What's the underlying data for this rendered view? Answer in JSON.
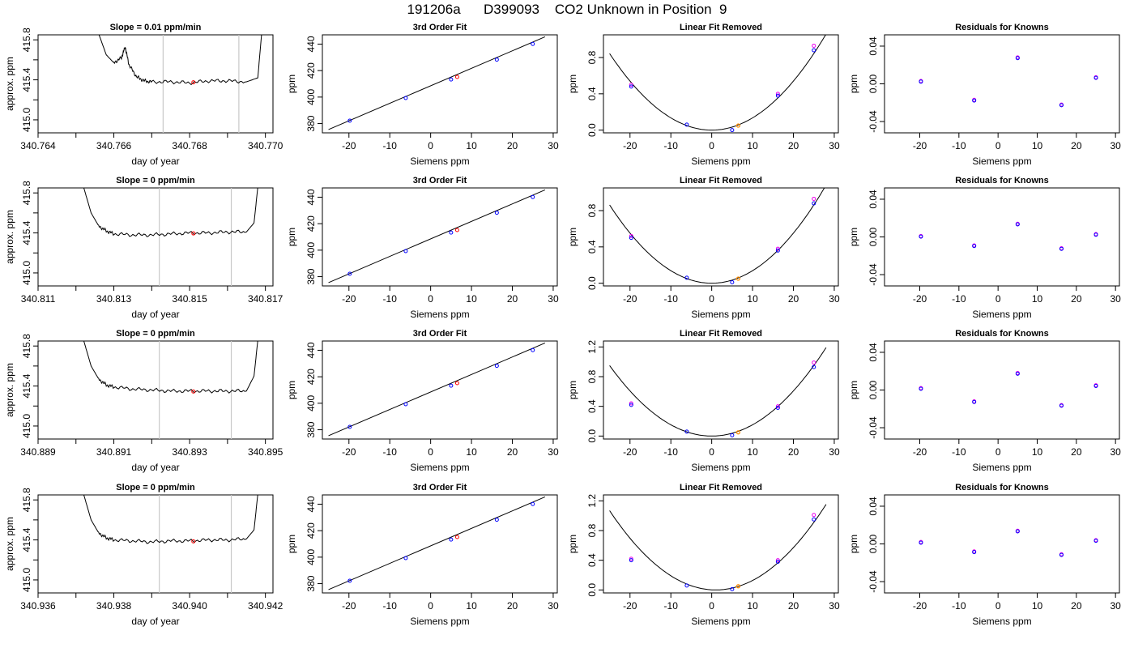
{
  "page_title": "191206a      D399093    CO2 Unknown in Position  9",
  "colors": {
    "known_point": "#0000ff",
    "known_point_alt": "#ee00ee",
    "unknown_point": "#ff0000",
    "unknown_point_removed": "#ff8c00",
    "fit_line": "#000000",
    "window_marker": "#c8c8c8"
  },
  "chart_data": [
    {
      "panel": "trace",
      "row": 1,
      "type": "line",
      "title": "Slope =  0.01  ppm/min",
      "xlabel": "day of year",
      "ylabel": "approx. ppm",
      "xlim": [
        340.764,
        340.7702
      ],
      "ylim": [
        414.87,
        415.85
      ],
      "xticks": [
        "340.764",
        "",
        "340.766",
        "",
        "340.768",
        "",
        "340.770"
      ],
      "xtick_values": [
        340.764,
        340.765,
        340.766,
        340.767,
        340.768,
        340.769,
        340.77
      ],
      "yticks": [
        "415.0",
        "415.4",
        "415.8"
      ],
      "ytick_values": [
        415.0,
        415.4,
        415.8
      ],
      "yminor": [
        415.2,
        415.6
      ],
      "vlines": [
        340.7673,
        340.7693
      ],
      "point": {
        "x": 340.7681,
        "y": 415.375
      },
      "x": [
        340.7656,
        340.7658,
        340.766,
        340.7662,
        340.7663,
        340.7664,
        340.7666,
        340.7668,
        340.767,
        340.7675,
        340.768,
        340.7685,
        340.769,
        340.7695,
        340.7698,
        340.7699
      ],
      "y": [
        415.86,
        415.65,
        415.57,
        415.62,
        415.73,
        415.55,
        415.43,
        415.39,
        415.38,
        415.38,
        415.37,
        415.39,
        415.39,
        415.38,
        415.42,
        415.86
      ]
    },
    {
      "panel": "fit",
      "row": 1,
      "type": "scatter",
      "title": "3rd Order Fit",
      "xlabel": "Siemens ppm",
      "ylabel": "ppm",
      "xlim": [
        -26.5,
        31
      ],
      "ylim": [
        373,
        447
      ],
      "xticks": [
        "-20",
        "-10",
        "0",
        "10",
        "20",
        "30"
      ],
      "xtick_values": [
        -20,
        -10,
        0,
        10,
        20,
        30
      ],
      "yticks": [
        "380",
        "400",
        "420",
        "440"
      ],
      "ytick_values": [
        380,
        400,
        420,
        440
      ],
      "fit_line": {
        "x": [
          -25,
          28
        ],
        "y": [
          375.5,
          445.5
        ]
      },
      "knowns": {
        "x": [
          -19.8,
          -6.1,
          5.0,
          16.2,
          25.0
        ],
        "y": [
          382.2,
          399.3,
          413.3,
          428.3,
          440.1
        ]
      },
      "unknown": {
        "x": 6.5,
        "y": 415.2
      }
    },
    {
      "panel": "linear_removed",
      "row": 1,
      "type": "scatter",
      "title": "Linear Fit Removed",
      "xlabel": "Siemens ppm",
      "ylabel": "ppm",
      "xlim": [
        -26.5,
        31
      ],
      "ylim": [
        -0.03,
        1.05
      ],
      "xticks": [
        "-20",
        "-10",
        "0",
        "10",
        "20",
        "30"
      ],
      "xtick_values": [
        -20,
        -10,
        0,
        10,
        20,
        30
      ],
      "yticks": [
        "0.0",
        "0.4",
        "0.8"
      ],
      "ytick_values": [
        0.0,
        0.4,
        0.8
      ],
      "curve": {
        "a": 0.00135,
        "x0": 0,
        "c": 0,
        "xmin": -25,
        "xmax": 28
      },
      "knowns": {
        "x": [
          -19.7,
          -6.1,
          5.0,
          16.2,
          25.0
        ],
        "y": [
          0.48,
          0.06,
          0.0,
          0.38,
          0.88
        ]
      },
      "knowns_alt": {
        "x": [
          -19.7,
          16.2,
          25.0
        ],
        "y": [
          0.5,
          0.4,
          0.93
        ]
      },
      "unknown": {
        "x": 6.5,
        "y": 0.05
      }
    },
    {
      "panel": "residuals",
      "row": 1,
      "type": "scatter",
      "title": "Residuals for Knowns",
      "xlabel": "Siemens ppm",
      "ylabel": "ppm",
      "xlim": [
        -29,
        31
      ],
      "ylim": [
        -0.052,
        0.052
      ],
      "xticks": [
        "-20",
        "-10",
        "0",
        "10",
        "20",
        "30"
      ],
      "xtick_values": [
        -20,
        -10,
        0,
        10,
        20,
        30
      ],
      "yticks": [
        "-0.04",
        "0.00",
        "0.04"
      ],
      "ytick_values": [
        -0.04,
        0.0,
        0.04
      ],
      "knowns": {
        "x": [
          -19.7,
          -6.1,
          5.0,
          16.2,
          25.0
        ],
        "y": [
          0.003,
          -0.017,
          0.028,
          -0.022,
          0.007
        ]
      }
    },
    {
      "panel": "trace",
      "row": 2,
      "type": "line",
      "title": "Slope =  0  ppm/min",
      "xlabel": "day of year",
      "ylabel": "approx. ppm",
      "xlim": [
        340.811,
        340.8172
      ],
      "ylim": [
        414.87,
        415.85
      ],
      "xticks": [
        "340.811",
        "",
        "340.813",
        "",
        "340.815",
        "",
        "340.817"
      ],
      "xtick_values": [
        340.811,
        340.812,
        340.813,
        340.814,
        340.815,
        340.816,
        340.817
      ],
      "yticks": [
        "415.0",
        "415.4",
        "415.8"
      ],
      "ytick_values": [
        415.0,
        415.4,
        415.8
      ],
      "yminor": [
        415.2,
        415.6
      ],
      "vlines": [
        340.8142,
        340.8161
      ],
      "point": {
        "x": 340.8151,
        "y": 415.395
      },
      "x": [
        340.8122,
        340.8124,
        340.8126,
        340.8128,
        340.813,
        340.8135,
        340.814,
        340.8145,
        340.815,
        340.8155,
        340.816,
        340.8165,
        340.8167,
        340.8168
      ],
      "y": [
        415.86,
        415.6,
        415.47,
        415.42,
        415.39,
        415.38,
        415.38,
        415.39,
        415.4,
        415.4,
        415.41,
        415.41,
        415.5,
        415.86
      ]
    },
    {
      "panel": "fit",
      "row": 2,
      "type": "scatter",
      "title": "3rd Order Fit",
      "xlabel": "Siemens ppm",
      "ylabel": "ppm",
      "xlim": [
        -26.5,
        31
      ],
      "ylim": [
        373,
        447
      ],
      "xticks": [
        "-20",
        "-10",
        "0",
        "10",
        "20",
        "30"
      ],
      "xtick_values": [
        -20,
        -10,
        0,
        10,
        20,
        30
      ],
      "yticks": [
        "380",
        "400",
        "420",
        "440"
      ],
      "ytick_values": [
        380,
        400,
        420,
        440
      ],
      "fit_line": {
        "x": [
          -25,
          28
        ],
        "y": [
          375.5,
          445.5
        ]
      },
      "knowns": {
        "x": [
          -19.8,
          -6.1,
          5.0,
          16.2,
          25.0
        ],
        "y": [
          382.2,
          399.3,
          413.3,
          428.3,
          440.1
        ]
      },
      "unknown": {
        "x": 6.5,
        "y": 415.2
      }
    },
    {
      "panel": "linear_removed",
      "row": 2,
      "type": "scatter",
      "title": "Linear Fit Removed",
      "xlabel": "Siemens ppm",
      "ylabel": "ppm",
      "xlim": [
        -26.5,
        31
      ],
      "ylim": [
        -0.03,
        1.05
      ],
      "xticks": [
        "-20",
        "-10",
        "0",
        "10",
        "20",
        "30"
      ],
      "xtick_values": [
        -20,
        -10,
        0,
        10,
        20,
        30
      ],
      "yticks": [
        "0.0",
        "0.4",
        "0.8"
      ],
      "ytick_values": [
        0.0,
        0.4,
        0.8
      ],
      "curve": {
        "a": 0.00138,
        "x0": 0,
        "c": 0,
        "xmin": -25,
        "xmax": 28
      },
      "knowns": {
        "x": [
          -19.7,
          -6.1,
          5.0,
          16.2,
          25.0
        ],
        "y": [
          0.5,
          0.06,
          0.01,
          0.36,
          0.88
        ]
      },
      "knowns_alt": {
        "x": [
          -19.7,
          16.2,
          25.0
        ],
        "y": [
          0.52,
          0.38,
          0.93
        ]
      },
      "unknown": {
        "x": 6.5,
        "y": 0.05
      }
    },
    {
      "panel": "residuals",
      "row": 2,
      "type": "scatter",
      "title": "Residuals for Knowns",
      "xlabel": "Siemens ppm",
      "ylabel": "ppm",
      "xlim": [
        -29,
        31
      ],
      "ylim": [
        -0.052,
        0.052
      ],
      "xticks": [
        "-20",
        "-10",
        "0",
        "10",
        "20",
        "30"
      ],
      "xtick_values": [
        -20,
        -10,
        0,
        10,
        20,
        30
      ],
      "yticks": [
        "-0.04",
        "0.00",
        "0.04"
      ],
      "ytick_values": [
        -0.04,
        0.0,
        0.04
      ],
      "knowns": {
        "x": [
          -19.7,
          -6.1,
          5.0,
          16.2,
          25.0
        ],
        "y": [
          0.001,
          -0.009,
          0.014,
          -0.012,
          0.003
        ]
      }
    },
    {
      "panel": "trace",
      "row": 3,
      "type": "line",
      "title": "Slope =  0  ppm/min",
      "xlabel": "day of year",
      "ylabel": "approx. ppm",
      "xlim": [
        340.889,
        340.8952
      ],
      "ylim": [
        414.87,
        415.85
      ],
      "xticks": [
        "340.889",
        "",
        "340.891",
        "",
        "340.893",
        "",
        "340.895"
      ],
      "xtick_values": [
        340.889,
        340.89,
        340.891,
        340.892,
        340.893,
        340.894,
        340.895
      ],
      "yticks": [
        "415.0",
        "415.4",
        "415.8"
      ],
      "ytick_values": [
        415.0,
        415.4,
        415.8
      ],
      "yminor": [
        415.2,
        415.6
      ],
      "vlines": [
        340.8922,
        340.8941
      ],
      "point": {
        "x": 340.8931,
        "y": 415.345
      },
      "x": [
        340.8902,
        340.8904,
        340.8906,
        340.8908,
        340.891,
        340.8915,
        340.892,
        340.8925,
        340.893,
        340.8935,
        340.894,
        340.8945,
        340.8947,
        340.8948
      ],
      "y": [
        415.86,
        415.6,
        415.47,
        415.41,
        415.39,
        415.37,
        415.36,
        415.35,
        415.35,
        415.35,
        415.35,
        415.35,
        415.5,
        415.86
      ]
    },
    {
      "panel": "fit",
      "row": 3,
      "type": "scatter",
      "title": "3rd Order Fit",
      "xlabel": "Siemens ppm",
      "ylabel": "ppm",
      "xlim": [
        -26.5,
        31
      ],
      "ylim": [
        373,
        447
      ],
      "xticks": [
        "-20",
        "-10",
        "0",
        "10",
        "20",
        "30"
      ],
      "xtick_values": [
        -20,
        -10,
        0,
        10,
        20,
        30
      ],
      "yticks": [
        "380",
        "400",
        "420",
        "440"
      ],
      "ytick_values": [
        380,
        400,
        420,
        440
      ],
      "fit_line": {
        "x": [
          -25,
          28
        ],
        "y": [
          375.5,
          445.5
        ]
      },
      "knowns": {
        "x": [
          -19.8,
          -6.1,
          5.0,
          16.2,
          25.0
        ],
        "y": [
          382.2,
          399.3,
          413.3,
          428.3,
          440.1
        ]
      },
      "unknown": {
        "x": 6.5,
        "y": 415.2
      }
    },
    {
      "panel": "linear_removed",
      "row": 3,
      "type": "scatter",
      "title": "Linear Fit Removed",
      "xlabel": "Siemens ppm",
      "ylabel": "ppm",
      "xlim": [
        -26.5,
        31
      ],
      "ylim": [
        -0.04,
        1.28
      ],
      "xticks": [
        "-20",
        "-10",
        "0",
        "10",
        "20",
        "30"
      ],
      "xtick_values": [
        -20,
        -10,
        0,
        10,
        20,
        30
      ],
      "yticks": [
        "0.0",
        "0.4",
        "0.8",
        "1.2"
      ],
      "ytick_values": [
        0.0,
        0.4,
        0.8,
        1.2
      ],
      "curve": {
        "a": 0.00152,
        "x0": 0,
        "c": 0,
        "xmin": -25,
        "xmax": 28
      },
      "knowns": {
        "x": [
          -19.7,
          -6.1,
          5.0,
          16.2,
          25.0
        ],
        "y": [
          0.42,
          0.06,
          0.01,
          0.38,
          0.93
        ]
      },
      "knowns_alt": {
        "x": [
          -19.7,
          16.2,
          25.0
        ],
        "y": [
          0.44,
          0.4,
          0.99
        ]
      },
      "unknown": {
        "x": 6.5,
        "y": 0.05
      }
    },
    {
      "panel": "residuals",
      "row": 3,
      "type": "scatter",
      "title": "Residuals for Knowns",
      "xlabel": "Siemens ppm",
      "ylabel": "ppm",
      "xlim": [
        -29,
        31
      ],
      "ylim": [
        -0.052,
        0.052
      ],
      "xticks": [
        "-20",
        "-10",
        "0",
        "10",
        "20",
        "30"
      ],
      "xtick_values": [
        -20,
        -10,
        0,
        10,
        20,
        30
      ],
      "yticks": [
        "-0.04",
        "0.00",
        "0.04"
      ],
      "ytick_values": [
        -0.04,
        0.0,
        0.04
      ],
      "knowns": {
        "x": [
          -19.7,
          -6.1,
          5.0,
          16.2,
          25.0
        ],
        "y": [
          0.002,
          -0.012,
          0.018,
          -0.016,
          0.005
        ]
      }
    },
    {
      "panel": "trace",
      "row": 4,
      "type": "line",
      "title": "Slope =  0  ppm/min",
      "xlabel": "day of year",
      "ylabel": "approx. ppm",
      "xlim": [
        340.936,
        340.9422
      ],
      "ylim": [
        414.87,
        415.85
      ],
      "xticks": [
        "340.936",
        "",
        "340.938",
        "",
        "340.940",
        "",
        "340.942"
      ],
      "xtick_values": [
        340.936,
        340.937,
        340.938,
        340.939,
        340.94,
        340.941,
        340.942
      ],
      "yticks": [
        "415.0",
        "415.4",
        "415.8"
      ],
      "ytick_values": [
        415.0,
        415.4,
        415.8
      ],
      "yminor": [
        415.2,
        415.6
      ],
      "vlines": [
        340.9392,
        340.9411
      ],
      "point": {
        "x": 340.9401,
        "y": 415.385
      },
      "x": [
        340.9372,
        340.9374,
        340.9376,
        340.9378,
        340.938,
        340.9385,
        340.939,
        340.9395,
        340.94,
        340.9405,
        340.941,
        340.9415,
        340.9417,
        340.9418
      ],
      "y": [
        415.86,
        415.6,
        415.47,
        415.42,
        415.4,
        415.39,
        415.38,
        415.39,
        415.39,
        415.4,
        415.4,
        415.41,
        415.5,
        415.86
      ]
    },
    {
      "panel": "fit",
      "row": 4,
      "type": "scatter",
      "title": "3rd Order Fit",
      "xlabel": "Siemens ppm",
      "ylabel": "ppm",
      "xlim": [
        -26.5,
        31
      ],
      "ylim": [
        373,
        447
      ],
      "xticks": [
        "-20",
        "-10",
        "0",
        "10",
        "20",
        "30"
      ],
      "xtick_values": [
        -20,
        -10,
        0,
        10,
        20,
        30
      ],
      "yticks": [
        "380",
        "400",
        "420",
        "440"
      ],
      "ytick_values": [
        380,
        400,
        420,
        440
      ],
      "fit_line": {
        "x": [
          -25,
          28
        ],
        "y": [
          375.5,
          445.5
        ]
      },
      "knowns": {
        "x": [
          -19.8,
          -6.1,
          5.0,
          16.2,
          25.0
        ],
        "y": [
          382.2,
          399.3,
          413.3,
          428.3,
          440.1
        ]
      },
      "unknown": {
        "x": 6.5,
        "y": 415.2
      }
    },
    {
      "panel": "linear_removed",
      "row": 4,
      "type": "scatter",
      "title": "Linear Fit Removed",
      "xlabel": "Siemens ppm",
      "ylabel": "ppm",
      "xlim": [
        -26.5,
        31
      ],
      "ylim": [
        -0.04,
        1.28
      ],
      "xticks": [
        "-20",
        "-10",
        "0",
        "10",
        "20",
        "30"
      ],
      "xtick_values": [
        -20,
        -10,
        0,
        10,
        20,
        30
      ],
      "yticks": [
        "0.0",
        "0.4",
        "0.8",
        "1.2"
      ],
      "ytick_values": [
        0.0,
        0.4,
        0.8,
        1.2
      ],
      "curve": {
        "a": 0.00158,
        "x0": 1,
        "c": 0,
        "xmin": -25,
        "xmax": 28
      },
      "knowns": {
        "x": [
          -19.7,
          -6.1,
          5.0,
          16.2,
          25.0
        ],
        "y": [
          0.4,
          0.06,
          0.01,
          0.38,
          0.95
        ]
      },
      "knowns_alt": {
        "x": [
          -19.7,
          16.2,
          25.0
        ],
        "y": [
          0.42,
          0.4,
          1.01
        ]
      },
      "unknown": {
        "x": 6.5,
        "y": 0.05
      }
    },
    {
      "panel": "residuals",
      "row": 4,
      "type": "scatter",
      "title": "Residuals for Knowns",
      "xlabel": "Siemens ppm",
      "ylabel": "ppm",
      "xlim": [
        -29,
        31
      ],
      "ylim": [
        -0.052,
        0.052
      ],
      "xticks": [
        "-20",
        "-10",
        "0",
        "10",
        "20",
        "30"
      ],
      "xtick_values": [
        -20,
        -10,
        0,
        10,
        20,
        30
      ],
      "yticks": [
        "-0.04",
        "0.00",
        "0.04"
      ],
      "ytick_values": [
        -0.04,
        0.0,
        0.04
      ],
      "knowns": {
        "x": [
          -19.7,
          -6.1,
          5.0,
          16.2,
          25.0
        ],
        "y": [
          0.002,
          -0.008,
          0.014,
          -0.011,
          0.004
        ]
      }
    }
  ]
}
